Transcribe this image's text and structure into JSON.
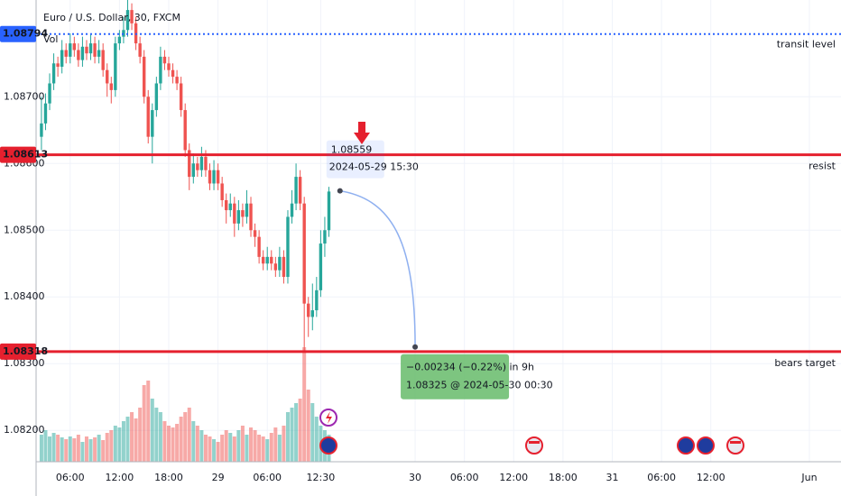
{
  "header": {
    "title": "Euro / U.S. Dollar, 30, FXCM",
    "indicator": "Vol"
  },
  "chart_data": {
    "type": "candlestick",
    "grid": true,
    "up_color": "#26a69a",
    "down_color": "#ef5350",
    "xlim": [
      -1.3,
      194.7
    ],
    "ylim": [
      1.08153,
      1.08845
    ],
    "volume_lim": [
      0,
      130
    ],
    "xticks": [
      {
        "value": 7,
        "label": "06:00"
      },
      {
        "value": 19,
        "label": "12:00"
      },
      {
        "value": 31,
        "label": "18:00"
      },
      {
        "value": 43,
        "label": "29"
      },
      {
        "value": 55,
        "label": "06:00"
      },
      {
        "value": 68,
        "label": "12:30"
      },
      {
        "value": 91,
        "label": "30"
      },
      {
        "value": 103,
        "label": "06:00"
      },
      {
        "value": 115,
        "label": "12:00"
      },
      {
        "value": 127,
        "label": "18:00"
      },
      {
        "value": 139,
        "label": "31"
      },
      {
        "value": 151,
        "label": "06:00"
      },
      {
        "value": 163,
        "label": "12:00"
      },
      {
        "value": 187,
        "label": "Jun"
      }
    ],
    "yticks": [
      {
        "value": 1.087,
        "label": "1.08700"
      },
      {
        "value": 1.086,
        "label": "1.08600"
      },
      {
        "value": 1.085,
        "label": "1.08500"
      },
      {
        "value": 1.084,
        "label": "1.08400"
      },
      {
        "value": 1.083,
        "label": "1.08300"
      },
      {
        "value": 1.082,
        "label": "1.08200"
      }
    ],
    "candles": [
      [
        1.0864,
        1.087,
        1.0862,
        1.0866
      ],
      [
        1.0866,
        1.08705,
        1.0865,
        1.0869
      ],
      [
        1.0869,
        1.08735,
        1.0868,
        1.0872
      ],
      [
        1.0872,
        1.08765,
        1.0871,
        1.0875
      ],
      [
        1.0875,
        1.0876,
        1.0873,
        1.08745
      ],
      [
        1.08745,
        1.08785,
        1.08735,
        1.0877
      ],
      [
        1.0877,
        1.0878,
        1.0875,
        1.0876
      ],
      [
        1.0876,
        1.08795,
        1.0875,
        1.0878
      ],
      [
        1.0878,
        1.0879,
        1.0876,
        1.0877
      ],
      [
        1.0877,
        1.0878,
        1.08745,
        1.08755
      ],
      [
        1.08755,
        1.0879,
        1.08745,
        1.08775
      ],
      [
        1.08775,
        1.08785,
        1.08755,
        1.08765
      ],
      [
        1.08765,
        1.08795,
        1.08755,
        1.0878
      ],
      [
        1.0878,
        1.0879,
        1.0875,
        1.0876
      ],
      [
        1.0876,
        1.08785,
        1.0875,
        1.0877
      ],
      [
        1.0877,
        1.0878,
        1.0873,
        1.0874
      ],
      [
        1.0874,
        1.0875,
        1.087,
        1.0872
      ],
      [
        1.0872,
        1.0873,
        1.0869,
        1.0871
      ],
      [
        1.0871,
        1.0879,
        1.087,
        1.0878
      ],
      [
        1.0878,
        1.088,
        1.0877,
        1.0879
      ],
      [
        1.0879,
        1.0882,
        1.0878,
        1.088
      ],
      [
        1.088,
        1.08845,
        1.0879,
        1.0883
      ],
      [
        1.0883,
        1.0884,
        1.088,
        1.0881
      ],
      [
        1.0881,
        1.0882,
        1.0877,
        1.0878
      ],
      [
        1.0878,
        1.0879,
        1.0875,
        1.0876
      ],
      [
        1.0876,
        1.0877,
        1.0869,
        1.087
      ],
      [
        1.087,
        1.0871,
        1.0863,
        1.0864
      ],
      [
        1.0864,
        1.0869,
        1.086,
        1.0868
      ],
      [
        1.0868,
        1.0873,
        1.0867,
        1.0872
      ],
      [
        1.0872,
        1.08775,
        1.0871,
        1.0876
      ],
      [
        1.0876,
        1.0877,
        1.0874,
        1.0875
      ],
      [
        1.0875,
        1.0876,
        1.0873,
        1.0874
      ],
      [
        1.0874,
        1.0875,
        1.0872,
        1.0873
      ],
      [
        1.0873,
        1.0874,
        1.0871,
        1.0872
      ],
      [
        1.0872,
        1.0873,
        1.0867,
        1.0868
      ],
      [
        1.0868,
        1.0869,
        1.0861,
        1.0862
      ],
      [
        1.0862,
        1.0863,
        1.0856,
        1.0858
      ],
      [
        1.0858,
        1.08615,
        1.0857,
        1.086
      ],
      [
        1.086,
        1.0861,
        1.0858,
        1.0859
      ],
      [
        1.0859,
        1.08625,
        1.0858,
        1.0861
      ],
      [
        1.0861,
        1.0862,
        1.0858,
        1.0859
      ],
      [
        1.0859,
        1.086,
        1.0856,
        1.0857
      ],
      [
        1.0857,
        1.08605,
        1.0856,
        1.0859
      ],
      [
        1.0859,
        1.086,
        1.0856,
        1.0857
      ],
      [
        1.0857,
        1.0858,
        1.08535,
        1.08545
      ],
      [
        1.08545,
        1.08555,
        1.0851,
        1.0853
      ],
      [
        1.0853,
        1.08555,
        1.0852,
        1.0854
      ],
      [
        1.0854,
        1.0855,
        1.0849,
        1.0851
      ],
      [
        1.0851,
        1.08545,
        1.085,
        1.0853
      ],
      [
        1.0853,
        1.0854,
        1.08505,
        1.0852
      ],
      [
        1.0852,
        1.0856,
        1.0851,
        1.0854
      ],
      [
        1.0854,
        1.0855,
        1.0849,
        1.085
      ],
      [
        1.085,
        1.0851,
        1.08475,
        1.0849
      ],
      [
        1.0849,
        1.085,
        1.0845,
        1.0846
      ],
      [
        1.0846,
        1.0847,
        1.0844,
        1.0845
      ],
      [
        1.0845,
        1.08475,
        1.0844,
        1.0846
      ],
      [
        1.0846,
        1.0847,
        1.0844,
        1.0845
      ],
      [
        1.0845,
        1.0846,
        1.0843,
        1.0844
      ],
      [
        1.0844,
        1.08475,
        1.0843,
        1.0846
      ],
      [
        1.0846,
        1.0847,
        1.0842,
        1.0843
      ],
      [
        1.0843,
        1.0853,
        1.0842,
        1.0852
      ],
      [
        1.0852,
        1.0856,
        1.0851,
        1.0854
      ],
      [
        1.0854,
        1.086,
        1.0853,
        1.0858
      ],
      [
        1.0858,
        1.0859,
        1.0853,
        1.0854
      ],
      [
        1.0854,
        1.0855,
        1.0832,
        1.0839
      ],
      [
        1.0839,
        1.084,
        1.0834,
        1.0837
      ],
      [
        1.0837,
        1.0842,
        1.0835,
        1.0838
      ],
      [
        1.0838,
        1.0843,
        1.0837,
        1.0841
      ],
      [
        1.0841,
        1.085,
        1.084,
        1.0848
      ],
      [
        1.0848,
        1.0852,
        1.0846,
        1.085
      ],
      [
        1.085,
        1.08565,
        1.0849,
        1.08558
      ]
    ],
    "volume": [
      30,
      35,
      28,
      32,
      30,
      27,
      25,
      28,
      26,
      30,
      22,
      28,
      25,
      27,
      30,
      24,
      32,
      35,
      40,
      38,
      45,
      50,
      55,
      48,
      60,
      85,
      90,
      70,
      60,
      55,
      45,
      40,
      38,
      42,
      50,
      55,
      60,
      45,
      40,
      35,
      30,
      28,
      25,
      22,
      30,
      35,
      32,
      28,
      35,
      40,
      30,
      38,
      35,
      30,
      28,
      25,
      32,
      38,
      30,
      40,
      55,
      60,
      65,
      70,
      127,
      80,
      65,
      50,
      40,
      35,
      30
    ],
    "levels": [
      {
        "value": 1.08794,
        "name": "transit level",
        "color": "#2962ff",
        "style": "dotted"
      },
      {
        "value": 1.08613,
        "name": "resist",
        "color": "#e5202e",
        "style": "solid"
      },
      {
        "value": 1.08318,
        "name": "bears target",
        "color": "#e5202e",
        "style": "solid"
      }
    ],
    "tooltip": {
      "price": 1.08559,
      "time": "2024-05-29 15:30"
    },
    "projection": {
      "from": [
        72.7,
        1.08559
      ],
      "to": [
        91,
        1.08325
      ],
      "change": "−0.00234 (−0.22%) in 9h",
      "target": "1.08325 @ 2024-05-30  00:30"
    }
  }
}
